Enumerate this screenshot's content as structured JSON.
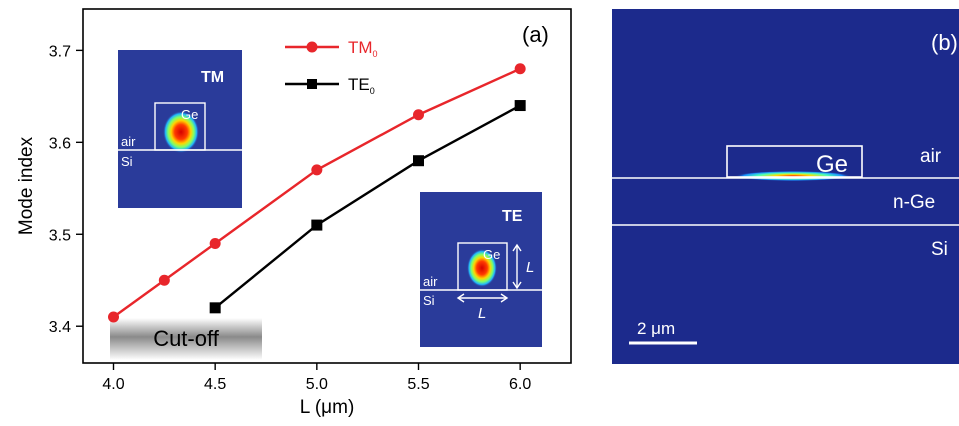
{
  "panel_a": {
    "label": "(a)",
    "cutoff_label": "Cut-off",
    "inset_tm": {
      "title": "TM",
      "material_label": "Ge",
      "upper_label": "air",
      "lower_label": "Si"
    },
    "inset_te": {
      "title": "TE",
      "material_label": "Ge",
      "upper_label": "air",
      "lower_label": "Si",
      "height_label": "L",
      "width_label": "L"
    }
  },
  "panel_b": {
    "label": "(b)",
    "ge_label": "Ge",
    "layers": [
      "air",
      "n-Ge",
      "Si"
    ],
    "scale_bar_label": "2 μm"
  },
  "colors": {
    "tm": "#e8262b",
    "te": "#000000",
    "field_bg": "#1c2a8c"
  },
  "chart_data": {
    "type": "line",
    "xlabel": "L (μm)",
    "ylabel": "Mode index",
    "xlim": [
      3.85,
      6.25
    ],
    "ylim": [
      3.36,
      3.745
    ],
    "xticks": [
      "4.0",
      "4.5",
      "5.0",
      "5.5",
      "6.0"
    ],
    "yticks": [
      "3.4",
      "3.5",
      "3.6",
      "3.7"
    ],
    "legend_position": "top-center",
    "grid": false,
    "series": [
      {
        "name": "TM0",
        "color": "#e8262b",
        "marker": "circle",
        "x": [
          4.0,
          4.25,
          4.5,
          5.0,
          5.5,
          6.0
        ],
        "y": [
          3.41,
          3.45,
          3.49,
          3.57,
          3.63,
          3.68
        ]
      },
      {
        "name": "TE0",
        "color": "#000000",
        "marker": "square",
        "x": [
          4.5,
          5.0,
          5.5,
          6.0
        ],
        "y": [
          3.42,
          3.51,
          3.58,
          3.64
        ]
      }
    ]
  }
}
